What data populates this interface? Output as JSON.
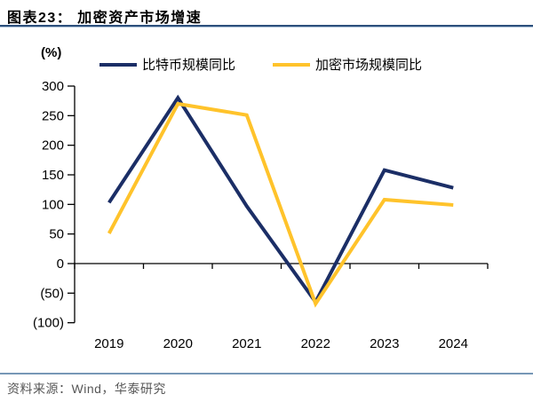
{
  "header": {
    "title": "图表23： 加密资产市场增速"
  },
  "chart": {
    "unit_label": "(%)"
  },
  "chart_data": {
    "type": "line",
    "title": "加密资产市场增速",
    "categories": [
      "2019",
      "2020",
      "2021",
      "2022",
      "2023",
      "2024"
    ],
    "series": [
      {
        "key": "bitcoin-yoy",
        "name": "比特币规模同比",
        "color": "#1b2e66",
        "values": [
          103,
          280,
          97,
          -65,
          158,
          128
        ]
      },
      {
        "key": "crypto-market-yoy",
        "name": "加密市场规模同比",
        "color": "#ffc32b",
        "values": [
          51,
          270,
          251,
          -68,
          108,
          99
        ]
      }
    ],
    "xlabel": "",
    "ylabel": "(%)",
    "ylim": [
      -100,
      300
    ],
    "ytick_step": 50,
    "negative_label_format": "parentheses",
    "grid": false,
    "legend_position": "top"
  },
  "footer": {
    "source": "资料来源：Wind，华泰研究"
  }
}
